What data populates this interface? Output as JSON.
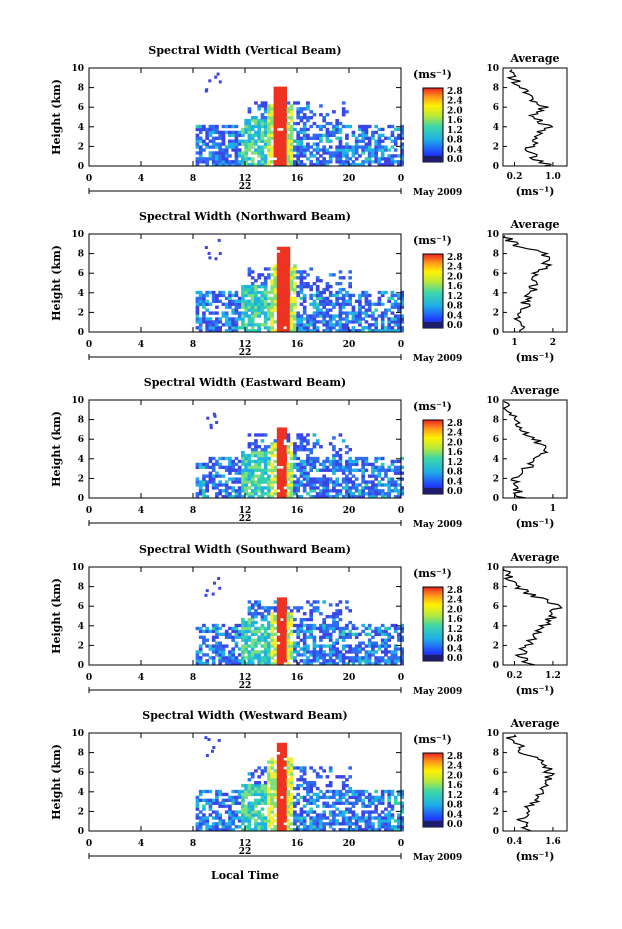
{
  "chart_data": [
    {
      "type": "heatmap",
      "title": "Spectral Width (Vertical Beam)",
      "ylabel": "Height (km)",
      "xlim": [
        0,
        24
      ],
      "ylim": [
        0,
        10
      ],
      "xticks": [
        "0",
        "4",
        "8",
        "12",
        "16",
        "20",
        "0"
      ],
      "yticks": [
        "0",
        "2",
        "4",
        "6",
        "8",
        "10"
      ],
      "date_label": "22",
      "month_label": "May 2009",
      "colorbar": {
        "unit": "(ms⁻¹)",
        "ticks": [
          "0.0",
          "0.4",
          "0.8",
          "1.2",
          "1.6",
          "2.0",
          "2.4",
          "2.8"
        ]
      },
      "core": {
        "t": [
          14.2,
          15.0
        ],
        "h": [
          0,
          7.8
        ]
      },
      "profile": {
        "title": "Average",
        "xlabel": "(ms⁻¹)",
        "xticks": [
          "0.2",
          "1.0"
        ],
        "xrange": [
          0,
          1.3
        ],
        "heights": [
          0,
          1,
          2,
          3,
          4,
          5,
          6,
          7,
          8,
          9,
          10
        ],
        "values": [
          0.95,
          0.6,
          0.55,
          0.65,
          0.9,
          0.6,
          0.85,
          0.5,
          0.4,
          0.2,
          0.05
        ]
      }
    },
    {
      "type": "heatmap",
      "title": "Spectral Width (Northward Beam)",
      "ylabel": "Height (km)",
      "xlim": [
        0,
        24
      ],
      "ylim": [
        0,
        10
      ],
      "xticks": [
        "0",
        "4",
        "8",
        "12",
        "16",
        "20",
        "0"
      ],
      "yticks": [
        "0",
        "2",
        "4",
        "6",
        "8",
        "10"
      ],
      "date_label": "22",
      "month_label": "May 2009",
      "colorbar": {
        "unit": "(ms⁻¹)",
        "ticks": [
          "0.0",
          "0.4",
          "0.8",
          "1.2",
          "1.6",
          "2.0",
          "2.4",
          "2.8"
        ]
      },
      "core": {
        "t": [
          14.3,
          15.2
        ],
        "h": [
          1,
          8.6
        ]
      },
      "profile": {
        "title": "Average",
        "xlabel": "(ms⁻¹)",
        "xticks": [
          "1",
          "2"
        ],
        "xrange": [
          0,
          2.6
        ],
        "heights": [
          0,
          1,
          2,
          3,
          4,
          5,
          6,
          7,
          8,
          9,
          10
        ],
        "values": [
          0.9,
          0.6,
          0.8,
          0.9,
          1.1,
          1.3,
          1.4,
          1.8,
          1.6,
          0.4,
          0.05
        ]
      }
    },
    {
      "type": "heatmap",
      "title": "Spectral Width (Eastward Beam)",
      "ylabel": "Height (km)",
      "xlim": [
        0,
        24
      ],
      "ylim": [
        0,
        10
      ],
      "xticks": [
        "0",
        "4",
        "8",
        "12",
        "16",
        "20",
        "0"
      ],
      "yticks": [
        "0",
        "2",
        "4",
        "6",
        "8",
        "10"
      ],
      "date_label": "22",
      "month_label": "May 2009",
      "colorbar": {
        "unit": "(ms⁻¹)",
        "ticks": [
          "0.0",
          "0.4",
          "0.8",
          "1.2",
          "1.6",
          "2.0",
          "2.4",
          "2.8"
        ]
      },
      "core": {
        "t": [
          14.4,
          15.0
        ],
        "h": [
          1,
          7.0
        ]
      },
      "profile": {
        "title": "Average",
        "xlabel": "(ms⁻¹)",
        "xticks": [
          "0",
          "1"
        ],
        "xrange": [
          0,
          1.6
        ],
        "heights": [
          0,
          1,
          2,
          3,
          4,
          5,
          6,
          7,
          8,
          9,
          10
        ],
        "values": [
          0.5,
          0.3,
          0.35,
          0.6,
          0.9,
          1.1,
          0.8,
          0.5,
          0.3,
          0.1,
          0.0
        ]
      }
    },
    {
      "type": "heatmap",
      "title": "Spectral Width (Southward Beam)",
      "ylabel": "Height (km)",
      "xlim": [
        0,
        24
      ],
      "ylim": [
        0,
        10
      ],
      "xticks": [
        "0",
        "4",
        "8",
        "12",
        "16",
        "20",
        "0"
      ],
      "yticks": [
        "0",
        "2",
        "4",
        "6",
        "8",
        "10"
      ],
      "date_label": "22",
      "month_label": "May 2009",
      "colorbar": {
        "unit": "(ms⁻¹)",
        "ticks": [
          "0.0",
          "0.4",
          "0.8",
          "1.2",
          "1.6",
          "2.0",
          "2.4",
          "2.8"
        ]
      },
      "core": {
        "t": [
          14.4,
          15.0
        ],
        "h": [
          1,
          6.6
        ]
      },
      "profile": {
        "title": "Average",
        "xlabel": "(ms⁻¹)",
        "xticks": [
          "0.2",
          "1.2"
        ],
        "xrange": [
          0,
          1.4
        ],
        "heights": [
          0,
          1,
          2,
          3,
          4,
          5,
          6,
          7,
          8,
          9,
          10
        ],
        "values": [
          0.6,
          0.4,
          0.5,
          0.7,
          0.9,
          1.1,
          1.2,
          0.7,
          0.3,
          0.1,
          0.0
        ]
      }
    },
    {
      "type": "heatmap",
      "title": "Spectral Width (Westward Beam)",
      "ylabel": "Height (km)",
      "xlim": [
        0,
        24
      ],
      "ylim": [
        0,
        10
      ],
      "xticks": [
        "0",
        "4",
        "8",
        "12",
        "16",
        "20",
        "0"
      ],
      "yticks": [
        "0",
        "2",
        "4",
        "6",
        "8",
        "10"
      ],
      "date_label": "22",
      "month_label": "May 2009",
      "xlabel": "Local Time",
      "colorbar": {
        "unit": "(ms⁻¹)",
        "ticks": [
          "0.0",
          "0.4",
          "0.8",
          "1.2",
          "1.6",
          "2.0",
          "2.4",
          "2.8"
        ]
      },
      "core": {
        "t": [
          14.3,
          15.0
        ],
        "h": [
          1,
          9.3
        ]
      },
      "profile": {
        "title": "Average",
        "xlabel": "(ms⁻¹)",
        "xticks": [
          "0.4",
          "1.6"
        ],
        "xrange": [
          0,
          1.8
        ],
        "heights": [
          0,
          1,
          2,
          3,
          4,
          5,
          6,
          7,
          8,
          9,
          10
        ],
        "values": [
          0.8,
          0.5,
          0.6,
          0.9,
          1.1,
          1.2,
          1.3,
          1.1,
          0.6,
          0.4,
          0.1
        ]
      }
    }
  ]
}
